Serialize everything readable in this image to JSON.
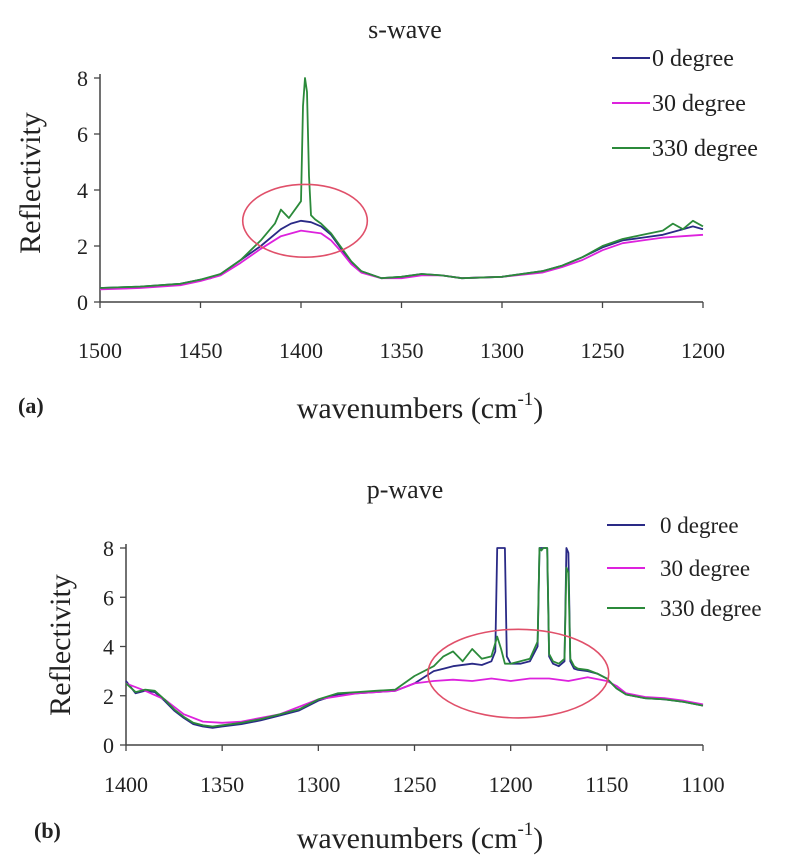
{
  "chart_data": [
    {
      "type": "line",
      "panel_label": "(a)",
      "title": "s-wave",
      "xlabel": "wavenumbers (cm",
      "xlabel_sup": "-1",
      "xlabel_end": ")",
      "ylabel": "Reflectivity",
      "xlim": [
        1500,
        1200
      ],
      "ylim": [
        0,
        8
      ],
      "x_ticks": [
        1500,
        1450,
        1400,
        1350,
        1300,
        1250,
        1200
      ],
      "y_ticks": [
        0,
        2,
        4,
        6,
        8
      ],
      "grid": false,
      "legend_position": "top-right",
      "series": [
        {
          "name": "0 degree",
          "color": "#2a2a86",
          "x": [
            1500,
            1480,
            1460,
            1450,
            1445,
            1440,
            1430,
            1420,
            1410,
            1405,
            1400,
            1395,
            1390,
            1385,
            1380,
            1375,
            1370,
            1360,
            1350,
            1340,
            1330,
            1320,
            1300,
            1280,
            1270,
            1260,
            1250,
            1240,
            1230,
            1220,
            1210,
            1205,
            1200
          ],
          "y": [
            0.5,
            0.55,
            0.65,
            0.8,
            0.85,
            1.0,
            1.5,
            2.0,
            2.6,
            2.8,
            2.9,
            2.85,
            2.7,
            2.4,
            1.9,
            1.4,
            1.1,
            0.85,
            0.9,
            1.0,
            0.95,
            0.85,
            0.9,
            1.1,
            1.3,
            1.6,
            1.95,
            2.2,
            2.3,
            2.4,
            2.6,
            2.7,
            2.6
          ]
        },
        {
          "name": "30 degree",
          "color": "#dd22dd",
          "x": [
            1500,
            1480,
            1460,
            1450,
            1440,
            1430,
            1420,
            1410,
            1400,
            1390,
            1385,
            1380,
            1375,
            1370,
            1360,
            1350,
            1340,
            1330,
            1320,
            1300,
            1280,
            1270,
            1260,
            1250,
            1240,
            1230,
            1220,
            1210,
            1200
          ],
          "y": [
            0.45,
            0.5,
            0.6,
            0.75,
            0.95,
            1.4,
            1.9,
            2.35,
            2.55,
            2.45,
            2.2,
            1.8,
            1.35,
            1.05,
            0.85,
            0.85,
            0.95,
            0.95,
            0.85,
            0.9,
            1.05,
            1.25,
            1.5,
            1.85,
            2.1,
            2.2,
            2.3,
            2.35,
            2.4
          ]
        },
        {
          "name": "330 degree",
          "color": "#2b8a3a",
          "x": [
            1500,
            1480,
            1460,
            1450,
            1440,
            1430,
            1420,
            1413,
            1410,
            1406,
            1402,
            1400,
            1399,
            1398,
            1397,
            1396,
            1395,
            1393,
            1390,
            1385,
            1380,
            1375,
            1370,
            1360,
            1350,
            1340,
            1330,
            1320,
            1300,
            1280,
            1270,
            1260,
            1250,
            1240,
            1230,
            1220,
            1215,
            1210,
            1205,
            1200
          ],
          "y": [
            0.5,
            0.55,
            0.65,
            0.8,
            1.0,
            1.5,
            2.2,
            2.8,
            3.3,
            3.0,
            3.4,
            3.6,
            7.0,
            8.0,
            7.5,
            4.5,
            3.1,
            2.95,
            2.8,
            2.45,
            1.95,
            1.45,
            1.1,
            0.85,
            0.9,
            1.0,
            0.95,
            0.85,
            0.9,
            1.1,
            1.3,
            1.6,
            2.0,
            2.25,
            2.4,
            2.55,
            2.8,
            2.6,
            2.9,
            2.7
          ]
        }
      ],
      "annotations": [
        {
          "shape": "ellipse",
          "color": "#e0506a",
          "x_center": 1398,
          "y_center": 2.9,
          "x_radius": 31,
          "y_radius": 1.3
        }
      ]
    },
    {
      "type": "line",
      "panel_label": "(b)",
      "title": "p-wave",
      "xlabel": "wavenumbers (cm",
      "xlabel_sup": "-1",
      "xlabel_end": ")",
      "ylabel": "Reflectivity",
      "xlim": [
        1400,
        1100
      ],
      "ylim": [
        0,
        8
      ],
      "x_ticks": [
        1400,
        1350,
        1300,
        1250,
        1200,
        1150,
        1100
      ],
      "y_ticks": [
        0,
        2,
        4,
        6,
        8
      ],
      "grid": false,
      "legend_position": "top-right",
      "series": [
        {
          "name": "0 degree",
          "color": "#2a2a86",
          "x": [
            1400,
            1395,
            1390,
            1385,
            1380,
            1375,
            1370,
            1365,
            1360,
            1355,
            1350,
            1340,
            1330,
            1320,
            1310,
            1300,
            1290,
            1280,
            1270,
            1260,
            1250,
            1240,
            1235,
            1230,
            1220,
            1215,
            1210,
            1208,
            1207,
            1205,
            1203,
            1202,
            1200,
            1195,
            1190,
            1186,
            1185,
            1184,
            1183,
            1181,
            1180,
            1178,
            1175,
            1172,
            1171,
            1170,
            1169,
            1167,
            1165,
            1160,
            1155,
            1150,
            1145,
            1140,
            1130,
            1120,
            1110,
            1100
          ],
          "y": [
            2.6,
            2.1,
            2.2,
            2.15,
            1.8,
            1.4,
            1.1,
            0.85,
            0.75,
            0.7,
            0.75,
            0.85,
            1.0,
            1.2,
            1.4,
            1.8,
            2.05,
            2.1,
            2.15,
            2.2,
            2.5,
            3.0,
            3.1,
            3.2,
            3.3,
            3.25,
            3.4,
            3.8,
            8.0,
            8.0,
            8.0,
            3.6,
            3.3,
            3.3,
            3.4,
            4.0,
            8.0,
            8.0,
            8.0,
            8.0,
            3.6,
            3.3,
            3.2,
            3.4,
            8.0,
            7.8,
            3.4,
            3.1,
            3.05,
            3.0,
            2.9,
            2.7,
            2.3,
            2.05,
            1.9,
            1.85,
            1.75,
            1.6
          ]
        },
        {
          "name": "30 degree",
          "color": "#dd22dd",
          "x": [
            1400,
            1390,
            1380,
            1370,
            1360,
            1350,
            1340,
            1320,
            1300,
            1280,
            1260,
            1250,
            1240,
            1230,
            1220,
            1210,
            1200,
            1190,
            1180,
            1170,
            1160,
            1150,
            1145,
            1140,
            1130,
            1120,
            1110,
            1100
          ],
          "y": [
            2.5,
            2.2,
            1.85,
            1.25,
            0.95,
            0.9,
            0.95,
            1.25,
            1.85,
            2.1,
            2.2,
            2.5,
            2.6,
            2.65,
            2.6,
            2.7,
            2.6,
            2.7,
            2.7,
            2.6,
            2.75,
            2.6,
            2.4,
            2.1,
            1.95,
            1.9,
            1.8,
            1.65
          ]
        },
        {
          "name": "330 degree",
          "color": "#2b8a3a",
          "x": [
            1400,
            1395,
            1390,
            1385,
            1380,
            1375,
            1370,
            1365,
            1360,
            1355,
            1350,
            1340,
            1330,
            1320,
            1310,
            1300,
            1290,
            1280,
            1270,
            1260,
            1250,
            1240,
            1235,
            1230,
            1225,
            1220,
            1215,
            1210,
            1207,
            1205,
            1203,
            1200,
            1195,
            1190,
            1186,
            1185,
            1184,
            1183,
            1181,
            1180,
            1178,
            1175,
            1172,
            1171,
            1170,
            1169,
            1167,
            1165,
            1160,
            1155,
            1150,
            1145,
            1140,
            1130,
            1120,
            1110,
            1100
          ],
          "y": [
            2.5,
            2.15,
            2.25,
            2.2,
            1.85,
            1.45,
            1.15,
            0.9,
            0.8,
            0.75,
            0.8,
            0.9,
            1.05,
            1.25,
            1.45,
            1.85,
            2.1,
            2.15,
            2.2,
            2.25,
            2.8,
            3.2,
            3.6,
            3.8,
            3.4,
            3.9,
            3.5,
            3.6,
            4.4,
            3.9,
            3.3,
            3.3,
            3.4,
            3.5,
            4.2,
            8.0,
            7.9,
            8.0,
            8.0,
            3.7,
            3.4,
            3.3,
            3.5,
            7.2,
            7.0,
            3.5,
            3.2,
            3.1,
            3.05,
            2.9,
            2.7,
            2.3,
            2.05,
            1.9,
            1.85,
            1.75,
            1.6
          ]
        }
      ],
      "annotations": [
        {
          "shape": "ellipse",
          "color": "#e0506a",
          "x_center": 1196,
          "y_center": 2.9,
          "x_radius": 47,
          "y_radius": 1.8
        }
      ]
    }
  ]
}
